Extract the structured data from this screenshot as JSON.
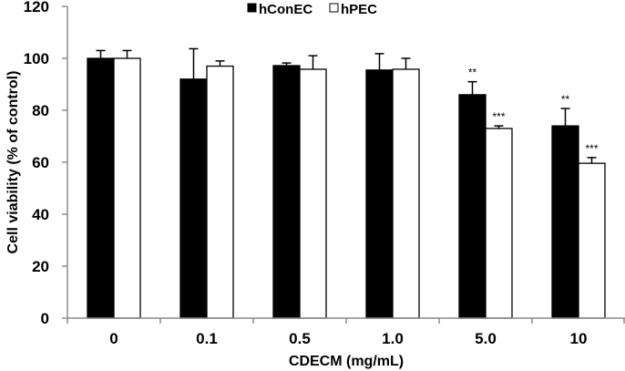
{
  "chart_data": {
    "type": "bar",
    "title": "",
    "xlabel": "CDECM (mg/mL)",
    "ylabel": "Cell viability (% of control)",
    "ylim": [
      0,
      120
    ],
    "yticks": [
      0,
      20,
      40,
      60,
      80,
      100,
      120
    ],
    "categories": [
      "0",
      "0.1",
      "0.5",
      "1.0",
      "5.0",
      "10"
    ],
    "legend_position": "top-center",
    "grid": false,
    "series": [
      {
        "name": "hConEC",
        "color": "#000000",
        "values": [
          100,
          92,
          97.2,
          95.5,
          86,
          74
        ],
        "errors": [
          3,
          11.7,
          1,
          6.3,
          5,
          6.7
        ],
        "significance": [
          "",
          "",
          "",
          "",
          "**",
          "**"
        ]
      },
      {
        "name": "hPEC",
        "color": "#ffffff",
        "values": [
          100,
          97,
          95.8,
          95.8,
          73,
          59.6
        ],
        "errors": [
          3,
          2,
          5.2,
          4.2,
          1,
          2.2
        ],
        "significance": [
          "",
          "",
          "",
          "",
          "***",
          "***"
        ]
      }
    ]
  }
}
